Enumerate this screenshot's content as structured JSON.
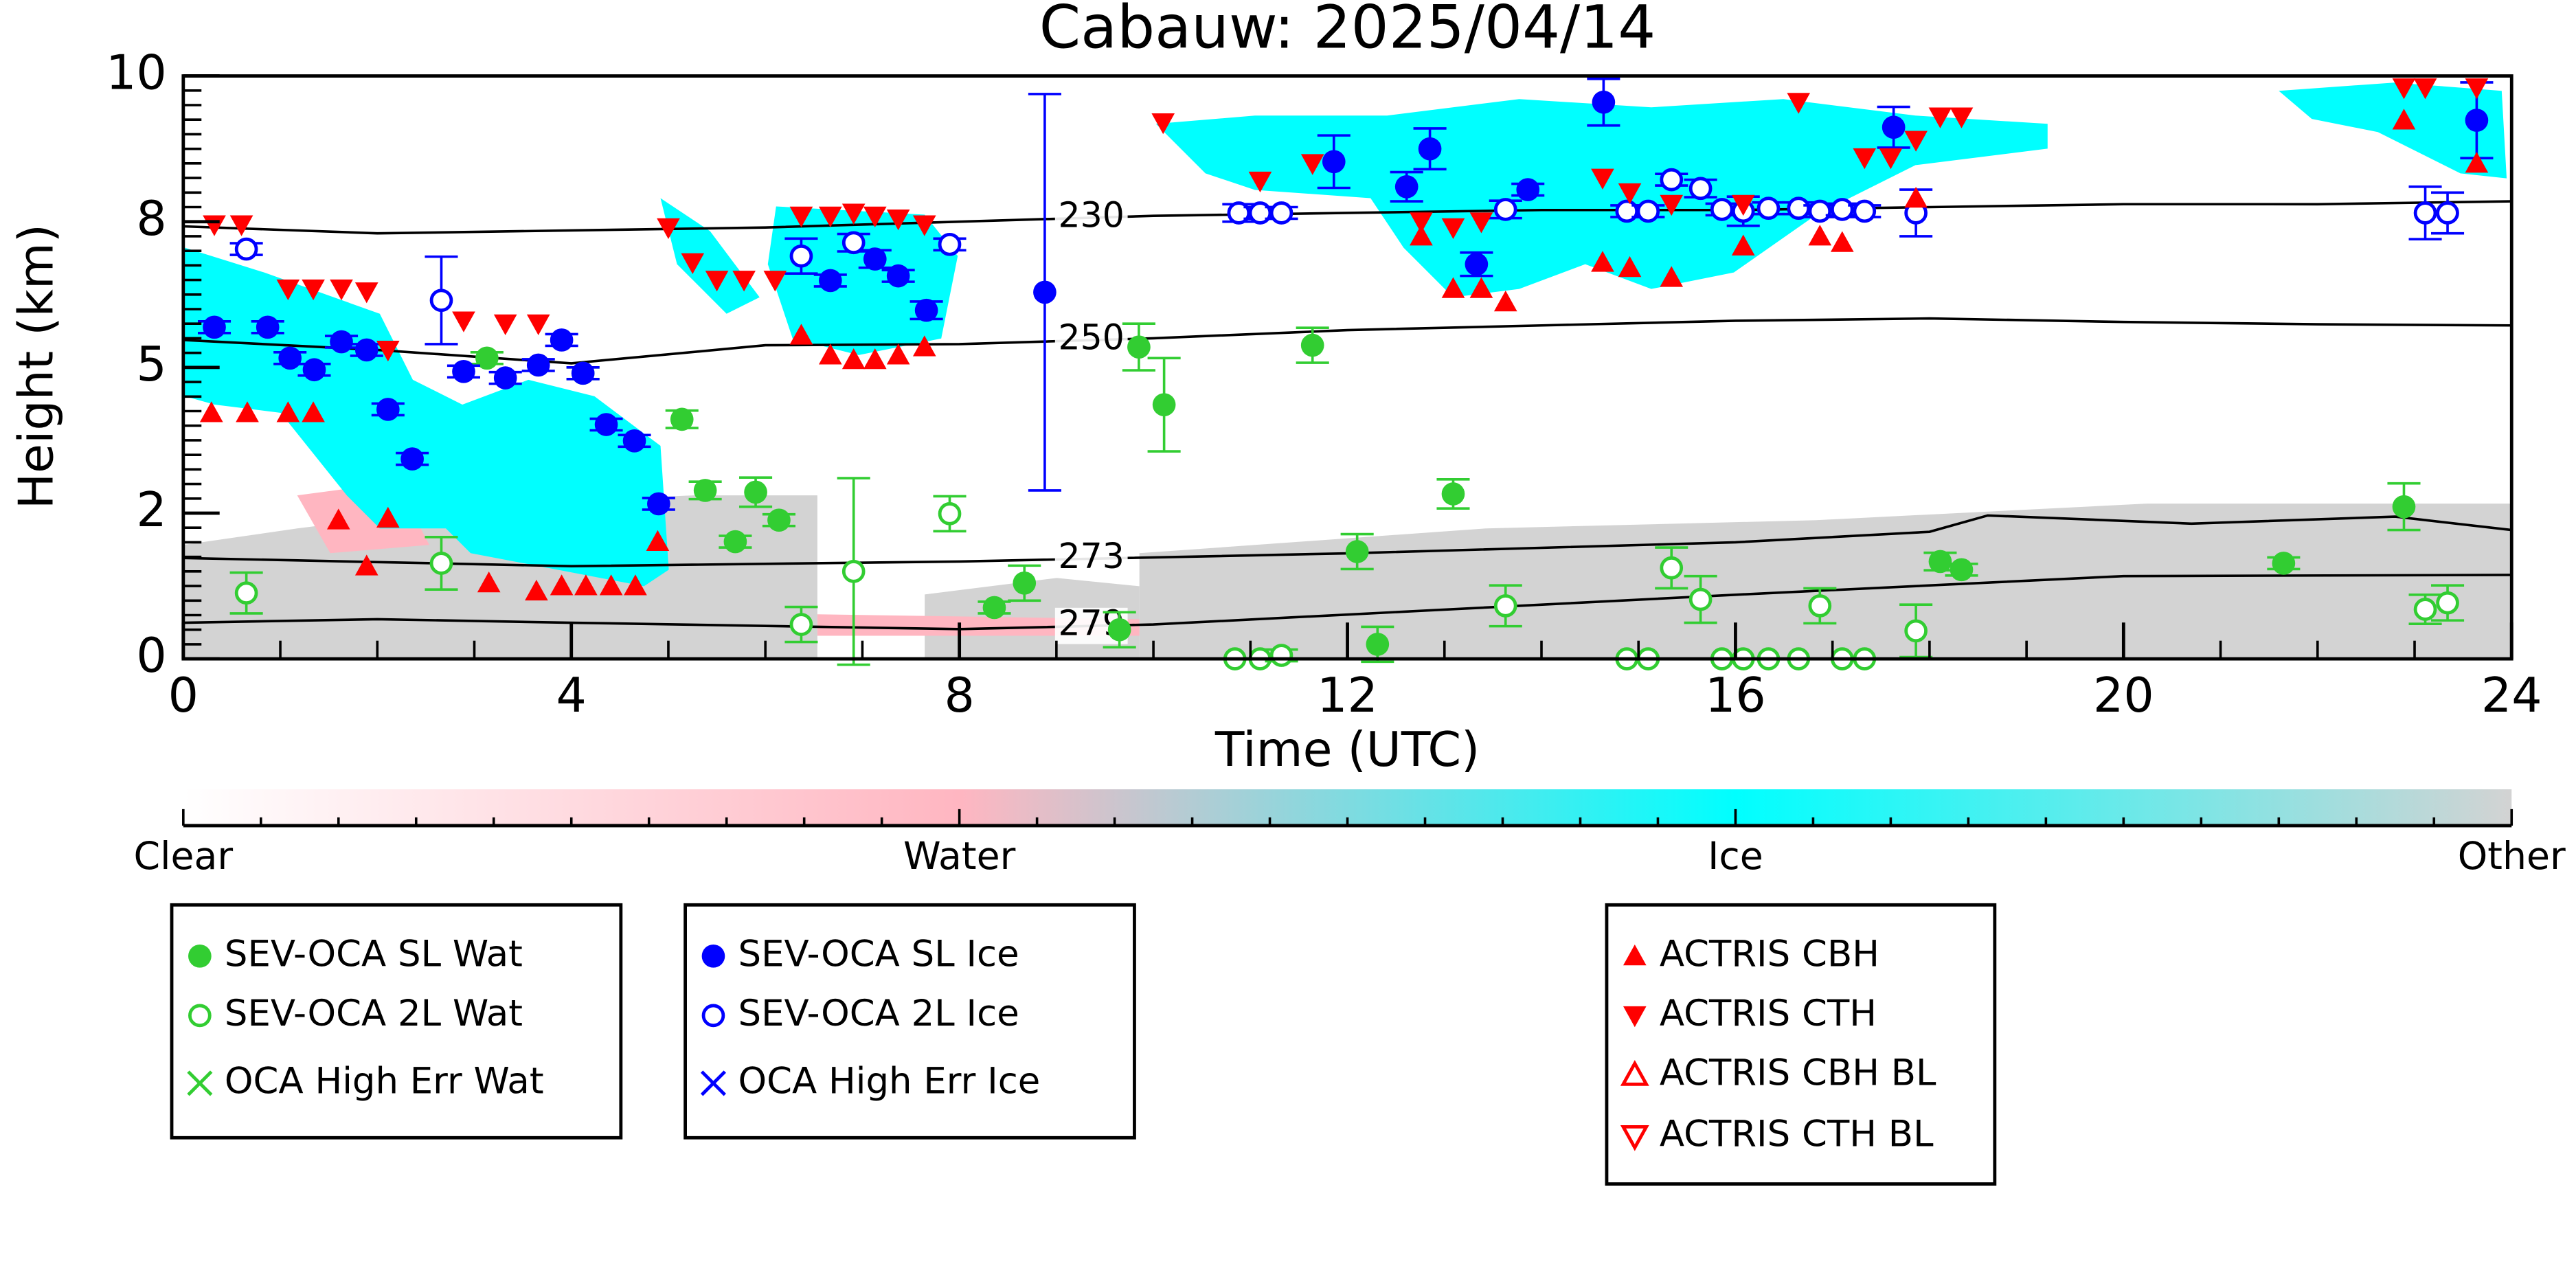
{
  "chart_data": {
    "type": "scatter",
    "title": "Cabauw: 2025/04/14",
    "xlabel": "Time (UTC)",
    "ylabel": "Height (km)",
    "xlim": [
      0,
      24
    ],
    "xticks": [
      0,
      4,
      8,
      12,
      16,
      20,
      24
    ],
    "ylim": [
      0,
      10
    ],
    "yticks": [
      0,
      {
        "value": 2.5,
        "label": "2"
      },
      5,
      {
        "value": 7.5,
        "label": "8"
      },
      10
    ],
    "colorbar": {
      "labels": [
        "Clear",
        "Water",
        "Ice",
        "Other"
      ],
      "colors": [
        "#ffffff",
        "#ffb6c1",
        "#00ffff",
        "#d3d3d3"
      ]
    },
    "contours": [
      {
        "label": "230",
        "x": [
          0,
          2,
          4,
          6,
          8,
          10,
          12,
          14,
          16,
          18,
          20,
          22,
          24
        ],
        "y": [
          7.42,
          7.3,
          7.35,
          7.4,
          7.5,
          7.6,
          7.65,
          7.7,
          7.7,
          7.75,
          7.8,
          7.8,
          7.85
        ]
      },
      {
        "label": "250",
        "x": [
          0,
          2,
          4,
          6,
          8,
          10,
          12,
          14,
          16,
          18,
          20,
          22,
          24
        ],
        "y": [
          5.47,
          5.3,
          5.07,
          5.38,
          5.4,
          5.5,
          5.64,
          5.72,
          5.8,
          5.84,
          5.78,
          5.74,
          5.72
        ]
      },
      {
        "label": "273",
        "x": [
          0,
          4,
          8,
          12,
          16,
          18,
          18.6,
          20.7,
          22.8,
          24
        ],
        "y": [
          1.73,
          1.59,
          1.67,
          1.81,
          2.0,
          2.18,
          2.46,
          2.32,
          2.44,
          2.21
        ]
      },
      {
        "label": "279",
        "x": [
          0,
          2,
          4,
          8,
          10,
          12,
          16,
          20,
          24
        ],
        "y": [
          0.62,
          0.68,
          0.62,
          0.51,
          0.59,
          0.76,
          1.1,
          1.42,
          1.44
        ]
      }
    ],
    "series": [
      {
        "name": "SEV-OCA SL Wat",
        "color": "#32cd32",
        "marker": "o",
        "x": [
          3.13,
          4.12,
          5.14,
          5.38,
          5.69,
          5.9,
          6.14,
          8.36,
          8.67,
          9.65,
          9.85,
          10.11,
          11.64,
          12.1,
          12.31,
          13.09,
          18.11,
          18.33,
          21.65,
          22.89
        ],
        "y": [
          5.16,
          4.9,
          4.11,
          2.89,
          2.01,
          2.86,
          2.38,
          0.88,
          1.3,
          0.5,
          5.35,
          4.36,
          5.38,
          1.84,
          0.25,
          2.83,
          1.67,
          1.53,
          1.64,
          2.61
        ],
        "errors": [
          0.1,
          0.1,
          0.15,
          0.15,
          0.1,
          0.25,
          0.1,
          0.1,
          0.3,
          0.3,
          0.4,
          0.8,
          0.3,
          0.3,
          0.3,
          0.25,
          0.15,
          0.1,
          0.1,
          0.4
        ]
      },
      {
        "name": "SEV-OCA 2L Wat",
        "color": "#32cd32",
        "marker": "open",
        "x": [
          0.65,
          2.66,
          6.37,
          6.91,
          7.9,
          10.84,
          11.1,
          11.32,
          13.63,
          14.88,
          15.1,
          15.34,
          15.64,
          15.86,
          16.08,
          16.34,
          16.65,
          16.87,
          17.1,
          17.33,
          17.86,
          23.11,
          23.34
        ],
        "y": [
          1.13,
          1.64,
          0.59,
          1.5,
          2.49,
          0,
          0,
          0.06,
          0.91,
          0,
          0,
          1.56,
          1.02,
          0,
          0,
          0,
          0,
          0.91,
          0,
          0,
          0.48,
          0.85,
          0.96
        ],
        "errors": [
          0.35,
          0.45,
          0.3,
          1.6,
          0.3,
          0,
          0,
          0.1,
          0.35,
          0,
          0,
          0.35,
          0.4,
          0,
          0,
          0,
          0,
          0.3,
          0,
          0,
          0.45,
          0.25,
          0.3
        ]
      },
      {
        "name": "OCA High Err Wat",
        "color": "#32cd32",
        "marker": "x",
        "x": [],
        "y": [],
        "errors": []
      },
      {
        "name": "SEV-OCA SL Ice",
        "color": "#0000ff",
        "marker": "o",
        "x": [
          0.32,
          0.87,
          1.1,
          1.35,
          1.63,
          1.89,
          2.11,
          2.36,
          2.89,
          3.32,
          3.66,
          3.9,
          4.12,
          4.36,
          4.65,
          4.9,
          6.67,
          7.13,
          7.37,
          7.66,
          8.88,
          11.86,
          12.61,
          12.85,
          13.33,
          13.86,
          14.64,
          17.63,
          23.64
        ],
        "y": [
          5.69,
          5.69,
          5.16,
          4.96,
          5.44,
          5.3,
          4.28,
          3.43,
          4.93,
          4.82,
          5.04,
          5.47,
          4.9,
          4.02,
          3.74,
          2.66,
          6.49,
          6.86,
          6.57,
          5.98,
          6.29,
          8.53,
          8.1,
          8.75,
          6.77,
          8.05,
          9.55,
          9.12,
          9.24
        ],
        "errors": [
          0.1,
          0.1,
          0.1,
          0.1,
          0.1,
          0.1,
          0.1,
          0.1,
          0.1,
          0.1,
          0.1,
          0.1,
          0.1,
          0.1,
          0.1,
          0.1,
          0.1,
          0.15,
          0.1,
          0.15,
          3.4,
          0.45,
          0.25,
          0.35,
          0.2,
          0.1,
          0.4,
          0.35,
          0.65
        ]
      },
      {
        "name": "SEV-OCA 2L Ice",
        "color": "#0000ff",
        "marker": "open",
        "x": [
          0.65,
          2.66,
          6.37,
          6.91,
          7.9,
          10.88,
          11.1,
          11.32,
          13.63,
          14.88,
          15.1,
          15.34,
          15.64,
          15.86,
          16.08,
          16.34,
          16.65,
          16.87,
          17.1,
          17.33,
          17.86,
          23.11,
          23.34
        ],
        "y": [
          7.03,
          6.15,
          6.91,
          7.14,
          7.11,
          7.65,
          7.65,
          7.65,
          7.71,
          7.68,
          7.68,
          8.22,
          8.07,
          7.71,
          7.68,
          7.73,
          7.73,
          7.68,
          7.71,
          7.68,
          7.65,
          7.65,
          7.65
        ],
        "errors": [
          0.1,
          0.75,
          0.3,
          0.15,
          0.1,
          0.15,
          0.1,
          0.1,
          0.15,
          0.1,
          0.1,
          0.1,
          0.15,
          0.1,
          0.25,
          0.1,
          0.1,
          0.1,
          0.1,
          0.1,
          0.4,
          0.45,
          0.35
        ]
      },
      {
        "name": "OCA High Err Ice",
        "color": "#0000ff",
        "marker": "x",
        "x": [],
        "y": [],
        "errors": []
      },
      {
        "name": "ACTRIS CBH",
        "color": "#ff0000",
        "marker": "^",
        "x": [
          0.29,
          0.66,
          1.08,
          1.34,
          1.6,
          1.89,
          2.11,
          3.15,
          3.64,
          3.9,
          4.15,
          4.41,
          4.66,
          4.89,
          6.37,
          6.67,
          6.91,
          7.13,
          7.37,
          7.64,
          12.76,
          13.09,
          13.38,
          13.63,
          14.63,
          14.91,
          15.34,
          16.08,
          16.87,
          17.1,
          17.86,
          22.89,
          23.64
        ],
        "y": [
          4.22,
          4.22,
          4.22,
          4.22,
          2.38,
          1.59,
          2.41,
          1.3,
          1.16,
          1.25,
          1.25,
          1.25,
          1.25,
          2.01,
          5.55,
          5.21,
          5.13,
          5.13,
          5.21,
          5.35,
          7.25,
          6.35,
          6.35,
          6.12,
          6.8,
          6.71,
          6.54,
          7.08,
          7.25,
          7.14,
          7.9,
          9.24,
          8.5
        ]
      },
      {
        "name": "ACTRIS CTH",
        "color": "#ff0000",
        "marker": "v",
        "x": [
          0.32,
          0.6,
          1.08,
          1.34,
          1.63,
          1.89,
          2.11,
          2.89,
          3.32,
          3.66,
          5.0,
          5.25,
          5.5,
          5.78,
          6.1,
          6.37,
          6.67,
          6.91,
          7.13,
          7.37,
          7.64,
          10.1,
          11.1,
          11.64,
          12.76,
          13.09,
          13.38,
          14.63,
          14.91,
          15.34,
          16.08,
          16.65,
          17.33,
          17.6,
          17.86,
          18.11,
          18.33,
          22.89,
          23.11,
          23.64
        ],
        "y": [
          7.45,
          7.45,
          6.35,
          6.35,
          6.35,
          6.3,
          5.3,
          5.8,
          5.75,
          5.75,
          7.4,
          6.8,
          6.5,
          6.5,
          6.5,
          7.6,
          7.6,
          7.65,
          7.6,
          7.55,
          7.45,
          9.2,
          8.2,
          8.5,
          7.5,
          7.4,
          7.5,
          8.25,
          8.0,
          7.8,
          7.8,
          9.55,
          8.6,
          8.6,
          8.9,
          9.3,
          9.3,
          9.8,
          9.8,
          9.8
        ]
      },
      {
        "name": "ACTRIS CBH BL",
        "color": "#ff0000",
        "marker": "^open",
        "x": [],
        "y": []
      },
      {
        "name": "ACTRIS CTH BL",
        "color": "#ff0000",
        "marker": "vopen",
        "x": [],
        "y": []
      }
    ]
  }
}
